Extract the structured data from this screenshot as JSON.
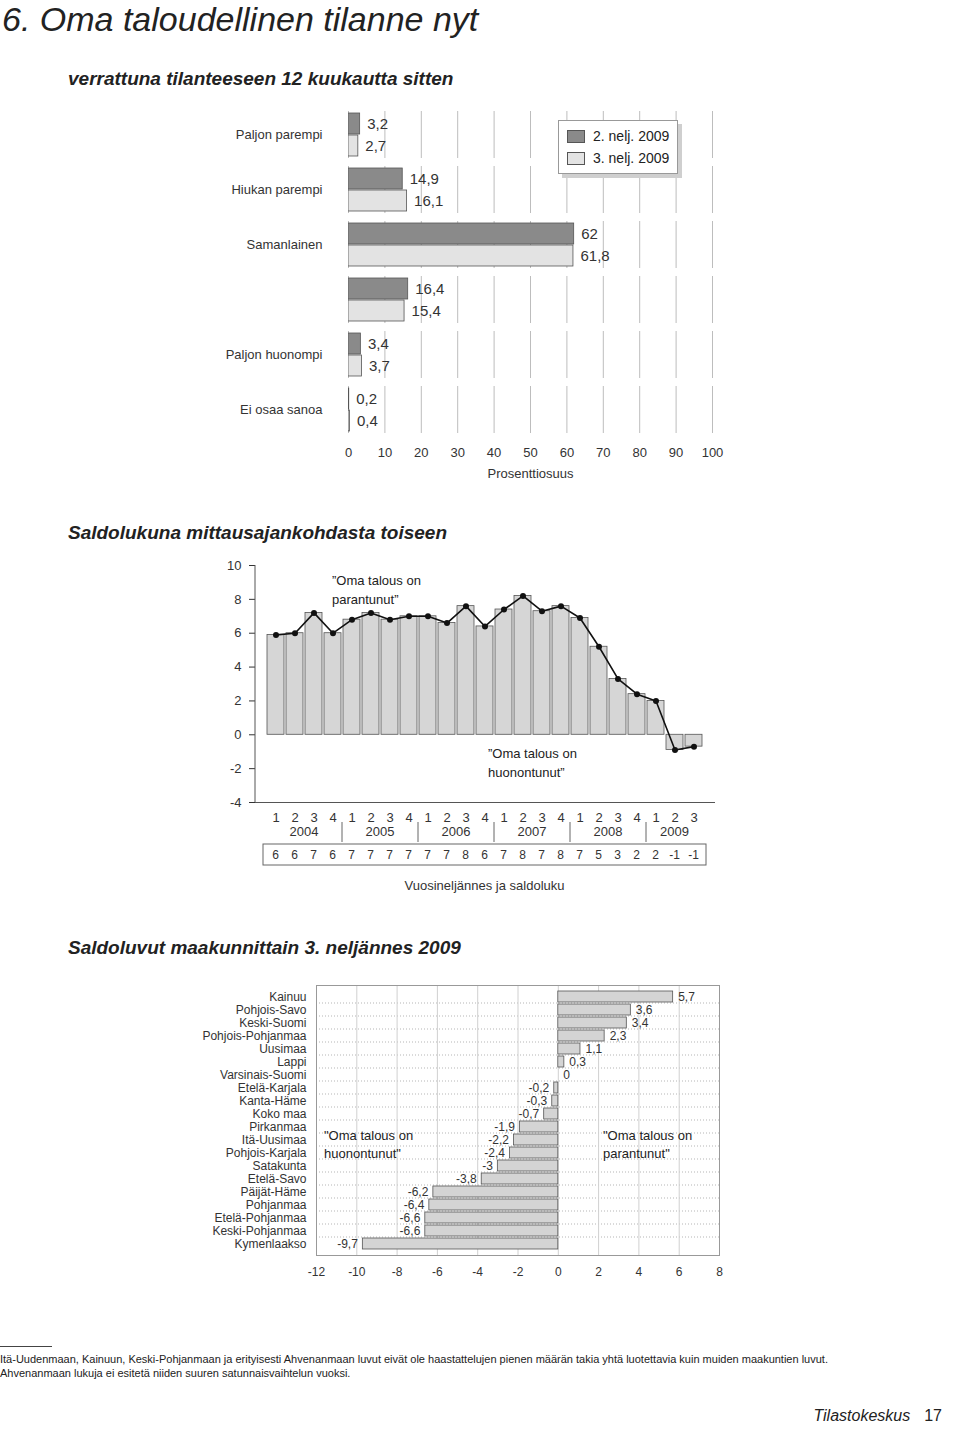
{
  "heading": "6. Oma taloudellinen tilanne nyt",
  "chart_data": [
    {
      "type": "bar",
      "orientation": "horizontal",
      "title": "verrattuna tilanteeseen 12 kuukautta sitten",
      "categories": [
        "Paljon parempi",
        "Hiukan parempi",
        "Samanlainen",
        null,
        "Paljon huonompi",
        "Ei osaa sanoa"
      ],
      "series": [
        {
          "name": "2. nelj. 2009",
          "color": "#8a8a8a",
          "values": [
            3.2,
            14.9,
            62,
            16.4,
            3.4,
            0.2
          ],
          "value_labels": [
            "3,2",
            "14,9",
            "62",
            "16,4",
            "3,4",
            "0,2"
          ]
        },
        {
          "name": "3. nelj. 2009",
          "color": "#e3e3e3",
          "values": [
            2.7,
            16.1,
            61.8,
            15.4,
            3.7,
            0.4
          ],
          "value_labels": [
            "2,7",
            "16,1",
            "61,8",
            "15,4",
            "3,7",
            "0,4"
          ]
        }
      ],
      "xlabel": "Prosenttiosuus",
      "xlim": [
        0,
        100
      ],
      "xticks": [
        0,
        10,
        20,
        30,
        40,
        50,
        60,
        70,
        80,
        90,
        100
      ],
      "grid": true,
      "legend": "top-right",
      "data_labels": true
    },
    {
      "type": "bar",
      "title": "Saldolukuna mittausajankohdasta toiseen",
      "categories": [
        "1",
        "2",
        "3",
        "4",
        "1",
        "2",
        "3",
        "4",
        "1",
        "2",
        "3",
        "4",
        "1",
        "2",
        "3",
        "4",
        "1",
        "2",
        "3",
        "4",
        "1",
        "2",
        "3"
      ],
      "years": [
        "2004",
        "2005",
        "2006",
        "2007",
        "2008",
        "2009"
      ],
      "values": [
        5.9,
        6.0,
        7.2,
        6.0,
        6.8,
        7.2,
        6.8,
        7.0,
        7.0,
        6.6,
        7.6,
        6.4,
        7.4,
        8.2,
        7.3,
        7.6,
        6.9,
        5.2,
        3.3,
        2.4,
        2.0,
        -0.9,
        -0.7
      ],
      "value_labels": [
        "6",
        "6",
        "7",
        "6",
        "7",
        "7",
        "7",
        "7",
        "7",
        "7",
        "8",
        "6",
        "7",
        "8",
        "7",
        "8",
        "7",
        "5",
        "3",
        "2",
        "2",
        "-1",
        "-1"
      ],
      "color": "#d6d6d6",
      "marker": "circle",
      "line_style": "solid",
      "xlabel": "Vuosineljännes ja saldoluku",
      "ylim": [
        -4,
        10
      ],
      "yticks": [
        -4,
        -2,
        0,
        2,
        4,
        6,
        8,
        10
      ],
      "annotations": [
        "”Oma talous on\nparantunut”",
        "”Oma talous on\nhuonontunut”"
      ]
    },
    {
      "type": "bar",
      "orientation": "horizontal",
      "title": "Saldoluvut maakunnittain 3. neljännes 2009",
      "categories": [
        "Kainuu",
        "Pohjois-Savo",
        "Keski-Suomi",
        "Pohjois-Pohjanmaa",
        "Uusimaa",
        "Lappi",
        "Varsinais-Suomi",
        "Etelä-Karjala",
        "Kanta-Häme",
        "Koko maa",
        "Pirkanmaa",
        "Itä-Uusimaa",
        "Pohjois-Karjala",
        "Satakunta",
        "Etelä-Savo",
        "Päijät-Häme",
        "Pohjanmaa",
        "Etelä-Pohjanmaa",
        "Keski-Pohjanmaa",
        "Kymenlaakso"
      ],
      "values": [
        5.7,
        3.6,
        3.4,
        2.3,
        1.1,
        0.3,
        0,
        -0.2,
        -0.3,
        -0.7,
        -1.9,
        -2.2,
        -2.4,
        -3,
        -3.8,
        -6.2,
        -6.4,
        -6.6,
        -6.6,
        -9.7
      ],
      "value_labels": [
        "5,7",
        "3,6",
        "3,4",
        "2,3",
        "1,1",
        "0,3",
        "0",
        "-0,2",
        "-0,3",
        "-0,7",
        "-1,9",
        "-2,2",
        "-2,4",
        "-3",
        "-3,8",
        "-6,2",
        "-6,4",
        "-6,6",
        "-6,6",
        "-9,7"
      ],
      "color": "#d4d4d4",
      "xlim": [
        -12,
        8
      ],
      "xticks": [
        -12,
        -10,
        -8,
        -6,
        -4,
        -2,
        0,
        2,
        4,
        6,
        8
      ],
      "grid": true,
      "data_labels": true,
      "annotations": [
        "\"Oma talous on\nhuonontunut\"",
        "\"Oma talous on\nparantunut\""
      ]
    }
  ],
  "footnote": [
    "Itä-Uudenmaan, Kainuun, Keski-Pohjanmaan ja erityisesti Ahvenanmaan luvut eivät ole haastattelujen pienen määrän takia yhtä luotettavia kuin muiden maakuntien luvut.",
    "Ahvenanmaan lukuja ei esitetä niiden suuren satunnaisvaihtelun vuoksi."
  ],
  "footer": {
    "publisher": "Tilastokeskus",
    "page": 17
  }
}
